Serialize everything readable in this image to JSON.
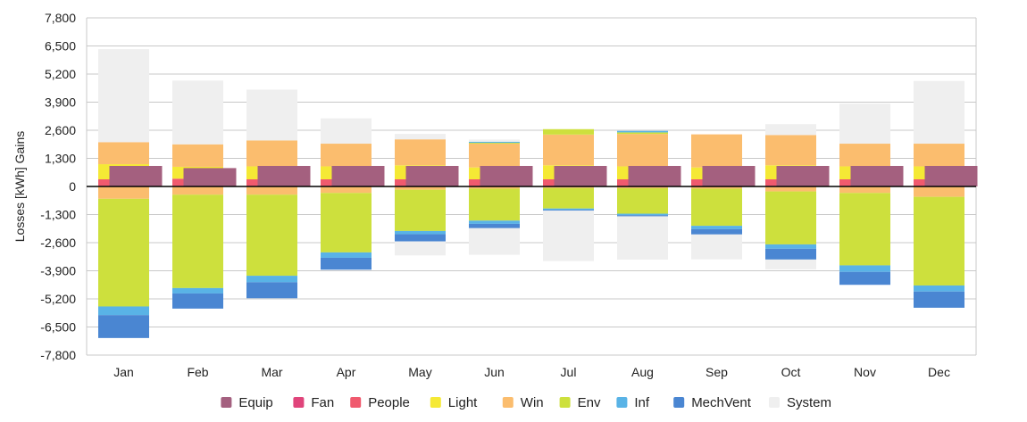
{
  "chart_data": {
    "type": "bar",
    "stacked": true,
    "ylabel": "Losses  [kWh]  Gains",
    "ylim": [
      -7800,
      7800
    ],
    "yticks": [
      7800,
      6500,
      5200,
      3900,
      2600,
      1300,
      0,
      -1300,
      -2600,
      -3900,
      -5200,
      -6500,
      -7800
    ],
    "ytick_labels": [
      "7,800",
      "6,500",
      "5,200",
      "3,900",
      "2,600",
      "1,300",
      "0",
      "-1,300",
      "-2,600",
      "-3,900",
      "-5,200",
      "-6,500",
      "-7,800"
    ],
    "grid": true,
    "legend_position": "bottom",
    "categories": [
      "Jan",
      "Feb",
      "Mar",
      "Apr",
      "May",
      "Jun",
      "Jul",
      "Aug",
      "Sep",
      "Oct",
      "Nov",
      "Dec"
    ],
    "equipment_series": {
      "name": "Equip",
      "color": "#a4607f",
      "values": [
        950,
        850,
        950,
        950,
        950,
        950,
        950,
        950,
        950,
        950,
        950,
        950
      ]
    },
    "series": [
      {
        "name": "Fan",
        "color": "#e0457b",
        "gains": [
          30,
          30,
          30,
          30,
          30,
          30,
          30,
          30,
          30,
          30,
          30,
          30
        ],
        "losses": [
          0,
          0,
          0,
          0,
          0,
          0,
          0,
          0,
          0,
          0,
          0,
          0
        ]
      },
      {
        "name": "People",
        "color": "#f05a6e",
        "gains": [
          300,
          330,
          300,
          300,
          300,
          300,
          300,
          300,
          300,
          300,
          300,
          300
        ],
        "losses": [
          0,
          0,
          0,
          0,
          0,
          0,
          0,
          0,
          0,
          0,
          0,
          0
        ]
      },
      {
        "name": "Light",
        "color": "#f5e935",
        "gains": [
          700,
          550,
          600,
          600,
          650,
          550,
          650,
          600,
          550,
          650,
          600,
          600
        ],
        "losses": [
          0,
          0,
          0,
          0,
          0,
          0,
          0,
          0,
          0,
          0,
          0,
          0
        ]
      },
      {
        "name": "Win",
        "color": "#fbbd6e",
        "gains": [
          1020,
          1040,
          1200,
          1050,
          1200,
          1100,
          1420,
          1500,
          1530,
          1400,
          1050,
          1050
        ],
        "losses": [
          -570,
          -380,
          -380,
          -300,
          -150,
          -100,
          -70,
          -80,
          -100,
          -230,
          -300,
          -480
        ]
      },
      {
        "name": "Env",
        "color": "#cde03d",
        "gains": [
          0,
          0,
          0,
          0,
          0,
          40,
          250,
          70,
          0,
          0,
          0,
          0
        ],
        "losses": [
          -4980,
          -4320,
          -3750,
          -2750,
          -1910,
          -1480,
          -950,
          -1180,
          -1720,
          -2450,
          -3350,
          -4100
        ]
      },
      {
        "name": "Inf",
        "color": "#59b3e6",
        "gains": [
          0,
          0,
          0,
          0,
          0,
          50,
          0,
          70,
          0,
          0,
          0,
          0
        ],
        "losses": [
          -400,
          -250,
          -300,
          -250,
          -150,
          -150,
          -60,
          -70,
          -150,
          -200,
          -300,
          -280
        ]
      },
      {
        "name": "MechVent",
        "color": "#4a86d2",
        "gains": [
          0,
          0,
          0,
          0,
          0,
          0,
          0,
          0,
          0,
          0,
          0,
          0
        ],
        "losses": [
          -1060,
          -700,
          -740,
          -550,
          -330,
          -200,
          -40,
          -50,
          -250,
          -500,
          -600,
          -750
        ]
      },
      {
        "name": "System",
        "color": "#efefef",
        "gains": [
          4300,
          2950,
          2350,
          1170,
          250,
          100,
          0,
          0,
          0,
          500,
          1850,
          2900
        ],
        "losses": [
          0,
          0,
          0,
          0,
          -650,
          -1230,
          -2330,
          -2000,
          -1150,
          -450,
          0,
          0
        ]
      }
    ]
  }
}
